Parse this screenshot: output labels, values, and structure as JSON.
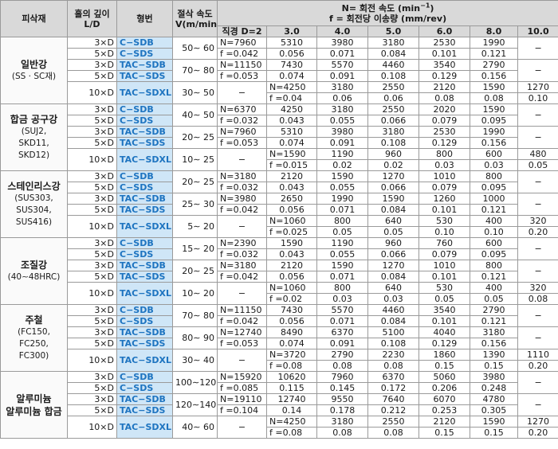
{
  "header": {
    "material": "피삭재",
    "hole_depth_line1": "홀의 깊이",
    "hole_depth_line2": "L/D",
    "model": "형번",
    "speed_line1": "절삭 속도",
    "speed_line2": "V(m/min)",
    "rpm_line": "N= 회전 속도 (min",
    "rpm_exp": "−1",
    "rpm_close": ")",
    "feed_line": "f = 회전당 이송량  (mm/rev)",
    "diameters": [
      "직경 D=2",
      "3.0",
      "4.0",
      "5.0",
      "6.0",
      "8.0",
      "10.0"
    ]
  },
  "dash": "−",
  "materials": [
    {
      "name": "일반강",
      "sub": [
        "(SS · SC재)"
      ],
      "rows": [
        {
          "ld": [
            "3×D",
            "5×D"
          ],
          "models": [
            "C−SDB",
            "C−SDS"
          ],
          "speed": "50∼ 60",
          "n": [
            "N=7960",
            "5310",
            "3980",
            "3180",
            "2530",
            "1990",
            null
          ],
          "f": [
            "f =0.042",
            "0.056",
            "0.071",
            "0.084",
            "0.101",
            "0.121",
            null
          ]
        },
        {
          "ld": [
            "3×D",
            "5×D"
          ],
          "models": [
            "TAC−SDB",
            "TAC−SDS"
          ],
          "speed": "70∼ 80",
          "n": [
            "N=11150",
            "7430",
            "5570",
            "4460",
            "3540",
            "2790",
            null
          ],
          "f": [
            "f =0.053",
            "0.074",
            "0.091",
            "0.108",
            "0.129",
            "0.156",
            null
          ]
        },
        {
          "ld": [
            "10×D"
          ],
          "models": [
            "TAC−SDXL"
          ],
          "speed": "30∼ 50",
          "n": [
            null,
            "N=4250",
            "3180",
            "2550",
            "2120",
            "1590",
            "1270"
          ],
          "f": [
            null,
            "f =0.04",
            "0.06",
            "0.06",
            "0.08",
            "0.08",
            "0.10"
          ]
        }
      ]
    },
    {
      "name": "합금 공구강",
      "sub": [
        "(SUJ2,",
        "SKD11,",
        "SKD12)"
      ],
      "rows": [
        {
          "ld": [
            "3×D",
            "5×D"
          ],
          "models": [
            "C−SDB",
            "C−SDS"
          ],
          "speed": "40∼ 50",
          "n": [
            "N=6370",
            "4250",
            "3180",
            "2550",
            "2020",
            "1590",
            null
          ],
          "f": [
            "f =0.032",
            "0.043",
            "0.055",
            "0.066",
            "0.079",
            "0.095",
            null
          ]
        },
        {
          "ld": [
            "3×D",
            "5×D"
          ],
          "models": [
            "TAC−SDB",
            "TAC−SDS"
          ],
          "speed": "20∼ 25",
          "n": [
            "N=7960",
            "5310",
            "3980",
            "3180",
            "2530",
            "1990",
            null
          ],
          "f": [
            "f =0.053",
            "0.074",
            "0.091",
            "0.108",
            "0.129",
            "0.156",
            null
          ]
        },
        {
          "ld": [
            "10×D"
          ],
          "models": [
            "TAC−SDXL"
          ],
          "speed": "10∼ 25",
          "n": [
            null,
            "N=1590",
            "1190",
            "960",
            "800",
            "600",
            "480"
          ],
          "f": [
            null,
            "f =0.015",
            "0.02",
            "0.02",
            "0.03",
            "0.03",
            "0.05"
          ]
        }
      ]
    },
    {
      "name": "스테인리스강",
      "sub": [
        "(SUS303,",
        "SUS304,",
        "SUS416)"
      ],
      "rows": [
        {
          "ld": [
            "3×D",
            "5×D"
          ],
          "models": [
            "C−SDB",
            "C−SDS"
          ],
          "speed": "20∼ 25",
          "n": [
            "N=3180",
            "2120",
            "1590",
            "1270",
            "1010",
            "800",
            null
          ],
          "f": [
            "f =0.032",
            "0.043",
            "0.055",
            "0.066",
            "0.079",
            "0.095",
            null
          ]
        },
        {
          "ld": [
            "3×D",
            "5×D"
          ],
          "models": [
            "TAC−SDB",
            "TAC−SDS"
          ],
          "speed": "25∼ 30",
          "n": [
            "N=3980",
            "2650",
            "1990",
            "1590",
            "1260",
            "1000",
            null
          ],
          "f": [
            "f =0.042",
            "0.056",
            "0.071",
            "0.084",
            "0.101",
            "0.121",
            null
          ]
        },
        {
          "ld": [
            "10×D"
          ],
          "models": [
            "TAC−SDXL"
          ],
          "speed": "5∼ 20",
          "n": [
            null,
            "N=1060",
            "800",
            "640",
            "530",
            "400",
            "320"
          ],
          "f": [
            null,
            "f =0.025",
            "0.05",
            "0.05",
            "0.10",
            "0.10",
            "0.20"
          ]
        }
      ]
    },
    {
      "name": "조질강",
      "sub": [
        "(40∼48HRC)"
      ],
      "rows": [
        {
          "ld": [
            "3×D",
            "5×D"
          ],
          "models": [
            "C−SDB",
            "C−SDS"
          ],
          "speed": "15∼ 20",
          "n": [
            "N=2390",
            "1590",
            "1190",
            "960",
            "760",
            "600",
            null
          ],
          "f": [
            "f =0.032",
            "0.043",
            "0.055",
            "0.066",
            "0.079",
            "0.095",
            null
          ]
        },
        {
          "ld": [
            "3×D",
            "5×D"
          ],
          "models": [
            "TAC−SDB",
            "TAC−SDS"
          ],
          "speed": "20∼ 25",
          "n": [
            "N=3180",
            "2120",
            "1590",
            "1270",
            "1010",
            "800",
            null
          ],
          "f": [
            "f =0.042",
            "0.056",
            "0.071",
            "0.084",
            "0.101",
            "0.121",
            null
          ]
        },
        {
          "ld": [
            "10×D"
          ],
          "models": [
            "TAC−SDXL"
          ],
          "speed": "10∼ 20",
          "n": [
            null,
            "N=1060",
            "800",
            "640",
            "530",
            "400",
            "320"
          ],
          "f": [
            null,
            "f =0.02",
            "0.03",
            "0.03",
            "0.05",
            "0.05",
            "0.08"
          ]
        }
      ]
    },
    {
      "name": "주철",
      "sub": [
        "(FC150,",
        "FC250,",
        "FC300)"
      ],
      "rows": [
        {
          "ld": [
            "3×D",
            "5×D"
          ],
          "models": [
            "C−SDB",
            "C−SDS"
          ],
          "speed": "70∼ 80",
          "n": [
            "N=11150",
            "7430",
            "5570",
            "4460",
            "3540",
            "2790",
            null
          ],
          "f": [
            "f =0.042",
            "0.056",
            "0.071",
            "0.084",
            "0.101",
            "0.121",
            null
          ]
        },
        {
          "ld": [
            "3×D",
            "5×D"
          ],
          "models": [
            "TAC−SDB",
            "TAC−SDS"
          ],
          "speed": "80∼ 90",
          "n": [
            "N=12740",
            "8490",
            "6370",
            "5100",
            "4040",
            "3180",
            null
          ],
          "f": [
            "f =0.053",
            "0.074",
            "0.091",
            "0.108",
            "0.129",
            "0.156",
            null
          ]
        },
        {
          "ld": [
            "10×D"
          ],
          "models": [
            "TAC−SDXL"
          ],
          "speed": "30∼ 40",
          "n": [
            null,
            "N=3720",
            "2790",
            "2230",
            "1860",
            "1390",
            "1110"
          ],
          "f": [
            null,
            "f =0.08",
            "0.08",
            "0.08",
            "0.15",
            "0.15",
            "0.20"
          ]
        }
      ]
    },
    {
      "name": "알루미늄",
      "name2": "알루미늄 합금",
      "sub": [],
      "rows": [
        {
          "ld": [
            "3×D",
            "5×D"
          ],
          "models": [
            "C−SDB",
            "C−SDS"
          ],
          "speed": "100∼120",
          "n": [
            "N=15920",
            "10620",
            "7960",
            "6370",
            "5060",
            "3980",
            null
          ],
          "f": [
            "f =0.085",
            "0.115",
            "0.145",
            "0.172",
            "0.206",
            "0.248",
            null
          ]
        },
        {
          "ld": [
            "3×D",
            "5×D"
          ],
          "models": [
            "TAC−SDB",
            "TAC−SDS"
          ],
          "speed": "120∼140",
          "n": [
            "N=19110",
            "12740",
            "9550",
            "7640",
            "6070",
            "4780",
            null
          ],
          "f": [
            "f =0.104",
            "0.14",
            "0.178",
            "0.212",
            "0.253",
            "0.305",
            null
          ]
        },
        {
          "ld": [
            "10×D"
          ],
          "models": [
            "TAC−SDXL"
          ],
          "speed": "40∼ 60",
          "n": [
            null,
            "N=4250",
            "3180",
            "2550",
            "2120",
            "1590",
            "1270"
          ],
          "f": [
            null,
            "f =0.08",
            "0.08",
            "0.08",
            "0.15",
            "0.15",
            "0.20"
          ]
        }
      ]
    }
  ]
}
